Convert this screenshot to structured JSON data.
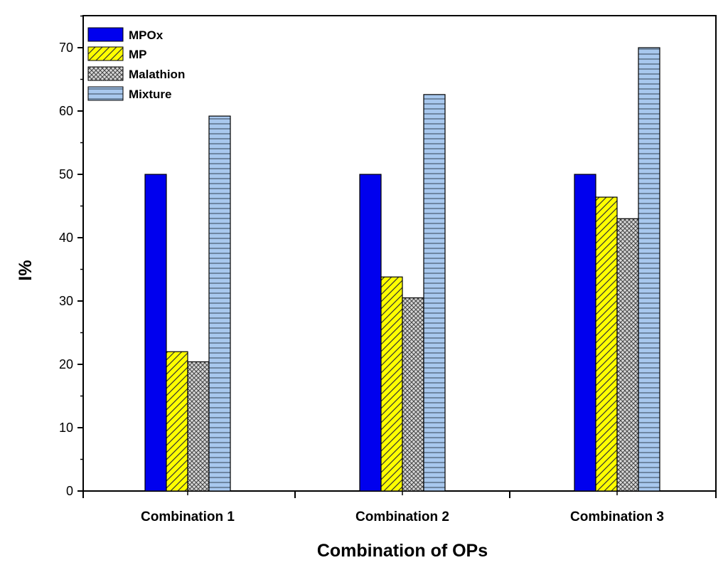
{
  "chart_data": {
    "type": "bar",
    "title": "",
    "xlabel": "Combination of OPs",
    "ylabel": "I%",
    "ylim": [
      0,
      75
    ],
    "yticks": [
      0,
      10,
      20,
      30,
      40,
      50,
      60,
      70
    ],
    "categories": [
      "Combination 1",
      "Combination 2",
      "Combination 3"
    ],
    "series": [
      {
        "name": "MPOx",
        "values": [
          50,
          50,
          50
        ],
        "color": "#0000ee",
        "pattern": "solid"
      },
      {
        "name": "MP",
        "values": [
          22,
          33.8,
          46.4
        ],
        "color": "#ffff00",
        "pattern": "diagonal"
      },
      {
        "name": "Malathion",
        "values": [
          20.4,
          30.5,
          43
        ],
        "color": "#b0b0b0",
        "pattern": "crosshatch"
      },
      {
        "name": "Mixture",
        "values": [
          59.2,
          62.6,
          70
        ],
        "color": "#a8c8ee",
        "pattern": "horizontal"
      }
    ],
    "legend_position": "top-left",
    "grid": false
  }
}
